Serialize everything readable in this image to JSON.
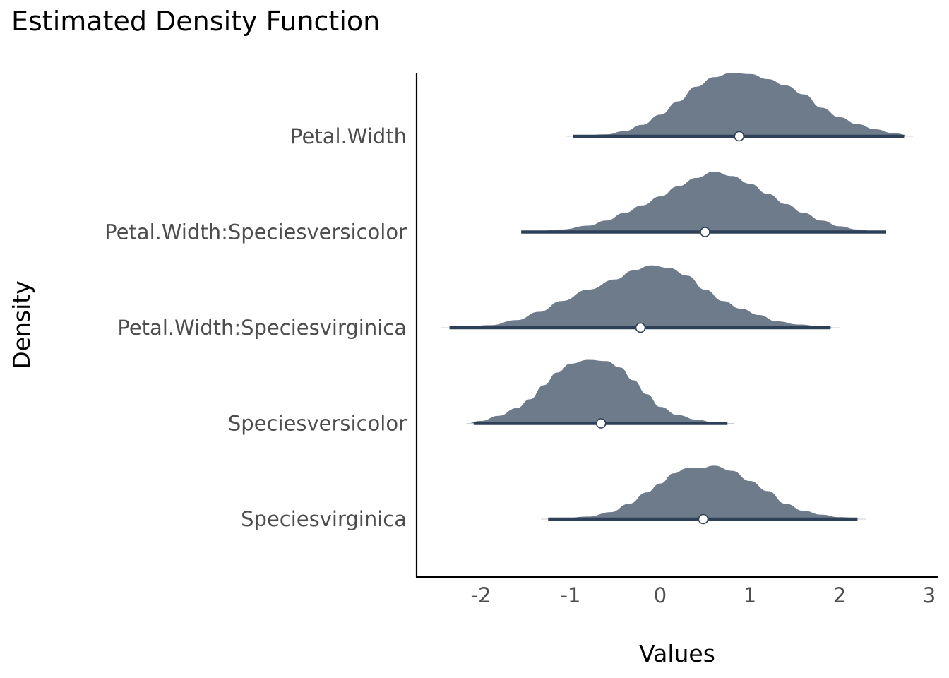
{
  "chart_data": {
    "type": "density-ridgeline",
    "title": "Estimated Density Function",
    "xlabel": "Values",
    "ylabel": "Density",
    "xlim": [
      -2.72,
      3.1
    ],
    "x_ticks": [
      -2,
      -1,
      0,
      1,
      2,
      3
    ],
    "x_tick_labels": [
      "-2",
      "-1",
      "0",
      "1",
      "2",
      "3"
    ],
    "grid": false,
    "legend": "none",
    "colors": {
      "fill": "#6e7b8b",
      "interval": "#2e4057",
      "point": "#ffffff"
    },
    "series": [
      {
        "name": "Petal.Width",
        "median": 0.88,
        "interval": [
          -0.97,
          2.72
        ],
        "range": [
          -1.05,
          2.82
        ],
        "density": [
          [
            -1.05,
            0.0
          ],
          [
            -0.9,
            0.01
          ],
          [
            -0.6,
            0.03
          ],
          [
            -0.4,
            0.08
          ],
          [
            -0.2,
            0.18
          ],
          [
            0.0,
            0.34
          ],
          [
            0.2,
            0.55
          ],
          [
            0.4,
            0.78
          ],
          [
            0.6,
            0.93
          ],
          [
            0.8,
            1.0
          ],
          [
            1.0,
            0.98
          ],
          [
            1.2,
            0.9
          ],
          [
            1.4,
            0.8
          ],
          [
            1.6,
            0.66
          ],
          [
            1.8,
            0.45
          ],
          [
            2.0,
            0.3
          ],
          [
            2.2,
            0.19
          ],
          [
            2.4,
            0.11
          ],
          [
            2.6,
            0.05
          ],
          [
            2.82,
            0.0
          ]
        ]
      },
      {
        "name": "Petal.Width:Speciesversicolor",
        "median": 0.5,
        "interval": [
          -1.55,
          2.52
        ],
        "range": [
          -1.65,
          2.62
        ],
        "density": [
          [
            -1.65,
            0.0
          ],
          [
            -1.4,
            0.01
          ],
          [
            -1.1,
            0.04
          ],
          [
            -0.8,
            0.1
          ],
          [
            -0.6,
            0.18
          ],
          [
            -0.4,
            0.3
          ],
          [
            -0.2,
            0.42
          ],
          [
            0.0,
            0.56
          ],
          [
            0.2,
            0.72
          ],
          [
            0.4,
            0.85
          ],
          [
            0.6,
            0.95
          ],
          [
            0.8,
            0.88
          ],
          [
            1.0,
            0.76
          ],
          [
            1.2,
            0.6
          ],
          [
            1.4,
            0.44
          ],
          [
            1.6,
            0.3
          ],
          [
            1.8,
            0.18
          ],
          [
            2.0,
            0.09
          ],
          [
            2.2,
            0.04
          ],
          [
            2.4,
            0.01
          ],
          [
            2.62,
            0.0
          ]
        ]
      },
      {
        "name": "Petal.Width:Speciesvirginica",
        "median": -0.22,
        "interval": [
          -2.35,
          1.9
        ],
        "range": [
          -2.45,
          2.0
        ],
        "density": [
          [
            -2.45,
            0.0
          ],
          [
            -2.2,
            0.01
          ],
          [
            -1.9,
            0.04
          ],
          [
            -1.6,
            0.12
          ],
          [
            -1.35,
            0.25
          ],
          [
            -1.1,
            0.42
          ],
          [
            -0.8,
            0.6
          ],
          [
            -0.5,
            0.76
          ],
          [
            -0.3,
            0.9
          ],
          [
            -0.1,
            0.98
          ],
          [
            0.1,
            0.94
          ],
          [
            0.3,
            0.82
          ],
          [
            0.5,
            0.6
          ],
          [
            0.7,
            0.42
          ],
          [
            0.9,
            0.3
          ],
          [
            1.1,
            0.2
          ],
          [
            1.3,
            0.1
          ],
          [
            1.55,
            0.05
          ],
          [
            1.8,
            0.02
          ],
          [
            2.0,
            0.0
          ]
        ]
      },
      {
        "name": "Speciesversicolor",
        "median": -0.66,
        "interval": [
          -2.08,
          0.75
        ],
        "range": [
          -2.16,
          0.82
        ],
        "density": [
          [
            -2.16,
            0.0
          ],
          [
            -2.0,
            0.04
          ],
          [
            -1.8,
            0.12
          ],
          [
            -1.6,
            0.24
          ],
          [
            -1.45,
            0.38
          ],
          [
            -1.3,
            0.6
          ],
          [
            -1.15,
            0.8
          ],
          [
            -1.0,
            0.94
          ],
          [
            -0.8,
            1.0
          ],
          [
            -0.6,
            0.98
          ],
          [
            -0.45,
            0.88
          ],
          [
            -0.3,
            0.68
          ],
          [
            -0.15,
            0.46
          ],
          [
            0.0,
            0.26
          ],
          [
            0.2,
            0.13
          ],
          [
            0.4,
            0.06
          ],
          [
            0.6,
            0.02
          ],
          [
            0.82,
            0.0
          ]
        ]
      },
      {
        "name": "Speciesvirginica",
        "median": 0.48,
        "interval": [
          -1.25,
          2.2
        ],
        "range": [
          -1.33,
          2.3
        ],
        "density": [
          [
            -1.33,
            0.0
          ],
          [
            -1.1,
            0.01
          ],
          [
            -0.8,
            0.04
          ],
          [
            -0.55,
            0.11
          ],
          [
            -0.35,
            0.24
          ],
          [
            -0.15,
            0.42
          ],
          [
            0.0,
            0.56
          ],
          [
            0.15,
            0.72
          ],
          [
            0.3,
            0.8
          ],
          [
            0.45,
            0.8
          ],
          [
            0.6,
            0.84
          ],
          [
            0.8,
            0.76
          ],
          [
            1.0,
            0.6
          ],
          [
            1.2,
            0.44
          ],
          [
            1.4,
            0.24
          ],
          [
            1.6,
            0.13
          ],
          [
            1.8,
            0.07
          ],
          [
            2.0,
            0.03
          ],
          [
            2.3,
            0.0
          ]
        ]
      }
    ]
  }
}
